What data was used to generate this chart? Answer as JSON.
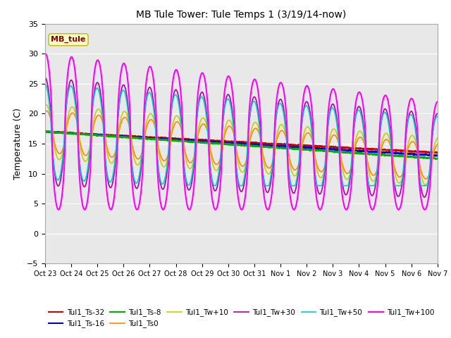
{
  "title": "MB Tule Tower: Tule Temps 1 (3/19/14-now)",
  "ylabel": "Temperature (C)",
  "ylim": [
    -5,
    35
  ],
  "yticks": [
    -5,
    0,
    5,
    10,
    15,
    20,
    25,
    30,
    35
  ],
  "plot_bg_color": "#e8e8e8",
  "fig_bg_color": "#ffffff",
  "grid_color": "#ffffff",
  "label_box": "MB_tule",
  "label_box_bg": "#ffffcc",
  "label_box_edge": "#bbbb00",
  "label_box_text_color": "#880000",
  "xtick_labels": [
    "Oct 23",
    "Oct 24",
    "Oct 25",
    "Oct 26",
    "Oct 27",
    "Oct 28",
    "Oct 29",
    "Oct 30",
    "Oct 31",
    "Nov 1",
    "Nov 2",
    "Nov 3",
    "Nov 4",
    "Nov 5",
    "Nov 6",
    "Nov 7"
  ],
  "num_days": 16,
  "series": [
    {
      "name": "Tul1_Ts-32",
      "color": "#cc0000",
      "lw": 1.5
    },
    {
      "name": "Tul1_Ts-16",
      "color": "#0000cc",
      "lw": 1.5
    },
    {
      "name": "Tul1_Ts-8",
      "color": "#00aa00",
      "lw": 1.5
    },
    {
      "name": "Tul1_Ts0",
      "color": "#ff8800",
      "lw": 1.2
    },
    {
      "name": "Tul1_Tw+10",
      "color": "#cccc00",
      "lw": 1.2
    },
    {
      "name": "Tul1_Tw+30",
      "color": "#aa00aa",
      "lw": 1.2
    },
    {
      "name": "Tul1_Tw+50",
      "color": "#00cccc",
      "lw": 1.2
    },
    {
      "name": "Tul1_Tw+100",
      "color": "#ff00ff",
      "lw": 1.5
    }
  ]
}
